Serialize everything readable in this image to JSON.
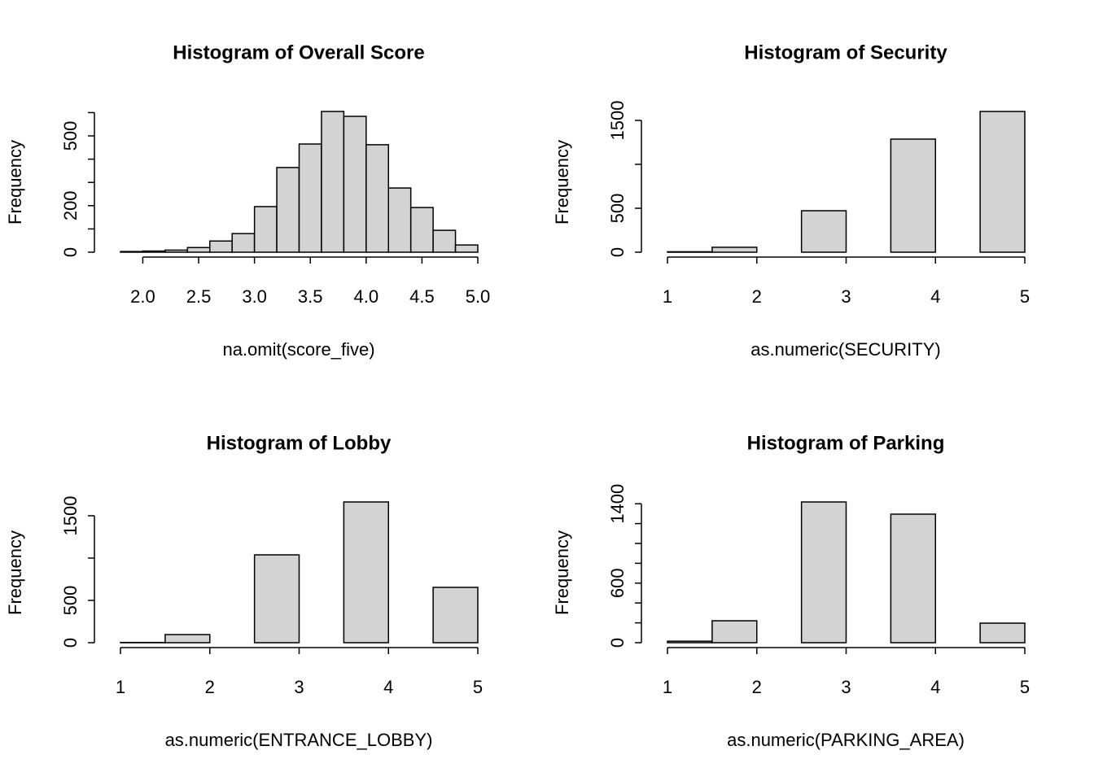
{
  "chart_data": [
    {
      "type": "histogram",
      "title": "Histogram of Overall Score",
      "xlabel": "na.omit(score_five)",
      "ylabel": "Frequency",
      "color": "#d3d3d3",
      "bins": [
        1.8,
        2.0,
        2.2,
        2.4,
        2.6,
        2.8,
        3.0,
        3.2,
        3.4,
        3.6,
        3.8,
        4.0,
        4.2,
        4.4,
        4.6,
        4.8,
        5.0
      ],
      "values": [
        3,
        5,
        9,
        20,
        48,
        80,
        196,
        364,
        465,
        605,
        584,
        462,
        276,
        192,
        94,
        31
      ],
      "xlim": [
        1.8,
        5.0
      ],
      "ylim": [
        0,
        605
      ],
      "xticks": [
        {
          "value": 2.0,
          "label": "2.0"
        },
        2.5,
        {
          "value": 3.0,
          "label": "3.0"
        },
        3.5,
        {
          "value": 4.0,
          "label": "4.0"
        },
        4.5,
        {
          "value": 5.0,
          "label": "5.0"
        }
      ],
      "yticks": [
        0,
        {
          "value": 100,
          "label": null
        },
        200,
        {
          "value": 300,
          "label": null
        },
        {
          "value": 400,
          "label": null
        },
        500,
        {
          "value": 600,
          "label": null
        }
      ]
    },
    {
      "type": "histogram",
      "title": "Histogram of Security",
      "xlabel": "as.numeric(SECURITY)",
      "ylabel": "Frequency",
      "color": "#d3d3d3",
      "bins": [
        1,
        1.5,
        2,
        2.5,
        3,
        3.5,
        4,
        4.5,
        5
      ],
      "values": [
        5,
        56,
        0,
        472,
        0,
        1287,
        0,
        1602
      ],
      "xlim": [
        1,
        5
      ],
      "ylim": [
        0,
        1602
      ],
      "xticks": [
        1,
        2,
        3,
        4,
        5
      ],
      "yticks": [
        0,
        500,
        {
          "value": 1000,
          "label": null
        },
        1500
      ]
    },
    {
      "type": "histogram",
      "title": "Histogram of Lobby",
      "xlabel": "as.numeric(ENTRANCE_LOBBY)",
      "ylabel": "Frequency",
      "color": "#d3d3d3",
      "bins": [
        1,
        1.5,
        2,
        2.5,
        3,
        3.5,
        4,
        4.5,
        5
      ],
      "values": [
        3,
        96,
        0,
        1038,
        0,
        1663,
        0,
        654
      ],
      "xlim": [
        1,
        5
      ],
      "ylim": [
        0,
        1663
      ],
      "xticks": [
        1,
        2,
        3,
        4,
        5
      ],
      "yticks": [
        0,
        500,
        {
          "value": 1000,
          "label": null
        },
        1500
      ]
    },
    {
      "type": "histogram",
      "title": "Histogram of Parking",
      "xlabel": "as.numeric(PARKING_AREA)",
      "ylabel": "Frequency",
      "color": "#d3d3d3",
      "bins": [
        1,
        1.5,
        2,
        2.5,
        3,
        3.5,
        4,
        4.5,
        5
      ],
      "values": [
        15,
        221,
        0,
        1418,
        0,
        1295,
        0,
        197
      ],
      "xlim": [
        1,
        5
      ],
      "ylim": [
        0,
        1418
      ],
      "xticks": [
        1,
        2,
        3,
        4,
        5
      ],
      "yticks": [
        0,
        {
          "value": 200,
          "label": null
        },
        {
          "value": 400,
          "label": null
        },
        600,
        {
          "value": 800,
          "label": null
        },
        {
          "value": 1000,
          "label": null
        },
        {
          "value": 1200,
          "label": null
        },
        1400
      ]
    }
  ]
}
